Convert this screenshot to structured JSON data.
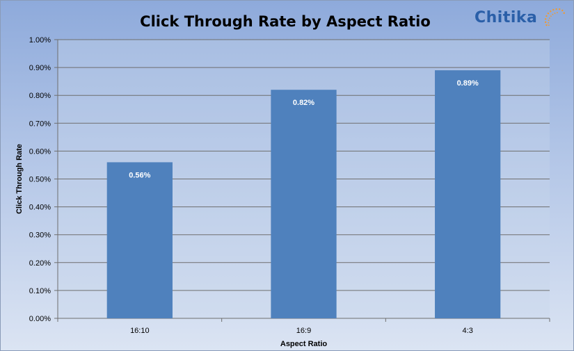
{
  "logo": {
    "text": "Chitika"
  },
  "chart_data": {
    "type": "bar",
    "title": "Click Through Rate by Aspect Ratio",
    "xlabel": "Aspect Ratio",
    "ylabel": "Click Through Rate",
    "categories": [
      "16:10",
      "16:9",
      "4:3"
    ],
    "values": [
      0.56,
      0.82,
      0.89
    ],
    "data_labels": [
      "0.56%",
      "0.82%",
      "0.89%"
    ],
    "ylim": [
      0,
      1.0
    ],
    "y_ticks": [
      0.0,
      0.1,
      0.2,
      0.3,
      0.4,
      0.5,
      0.6,
      0.7,
      0.8,
      0.9,
      1.0
    ],
    "y_tick_labels": [
      "0.00%",
      "0.10%",
      "0.20%",
      "0.30%",
      "0.40%",
      "0.50%",
      "0.60%",
      "0.70%",
      "0.80%",
      "0.90%",
      "1.00%"
    ],
    "grid": true,
    "legend": "none",
    "bar_color": "#4f81bd",
    "plot_background": "#c9d6ec"
  }
}
